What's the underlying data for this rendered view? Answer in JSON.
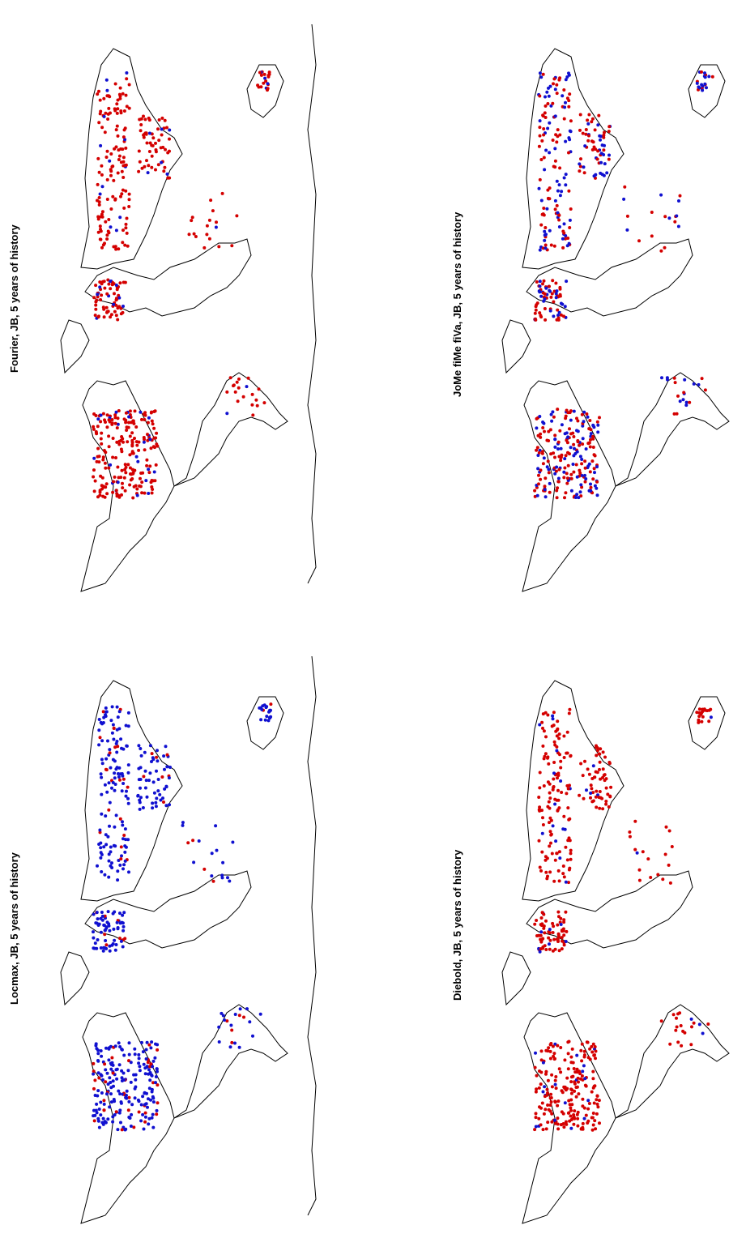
{
  "panels": [
    {
      "title": "Fourier, JB, 5 years of history",
      "dominant": "red"
    },
    {
      "title": "Locmax, JB, 5 years of history",
      "dominant": "blue"
    },
    {
      "title": "JoMe fiMe fiVa, JB, 5 years of history",
      "dominant": "mixed"
    },
    {
      "title": "Diebold, JB, 5 years of history",
      "dominant": "red"
    }
  ],
  "colors": {
    "red": "#d40000",
    "blue": "#1010d0",
    "coast": "#000000"
  }
}
